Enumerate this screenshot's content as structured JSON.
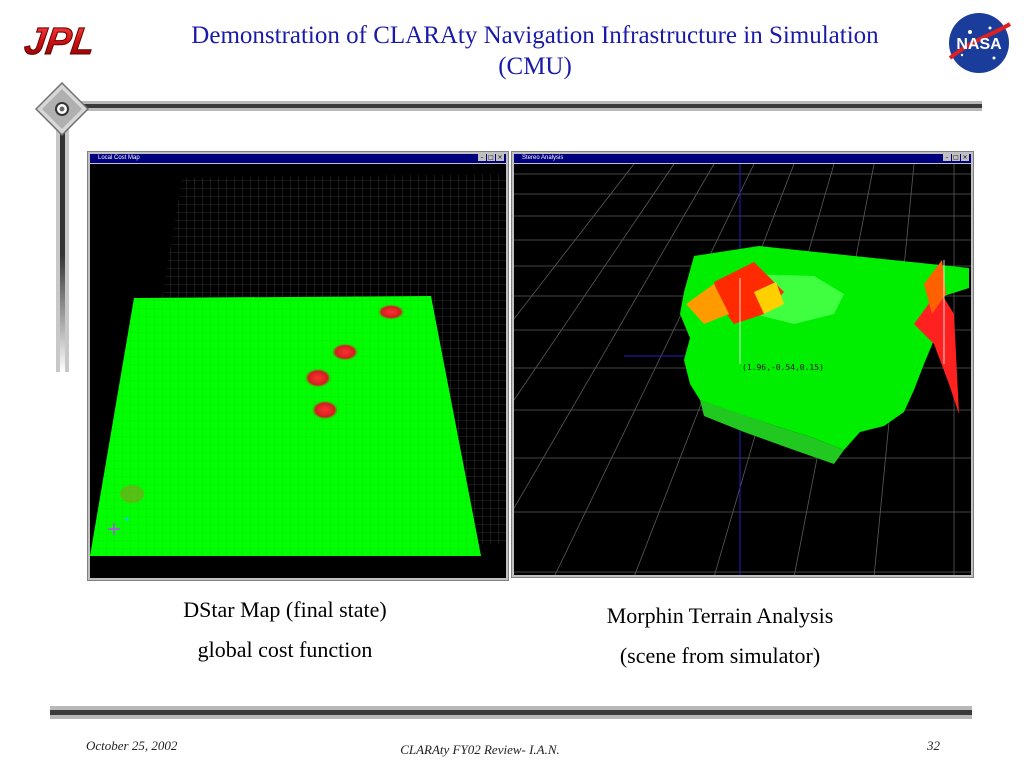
{
  "header": {
    "title_line1": "Demonstration of CLARAty Navigation Infrastructure in Simulation",
    "title_line2": "(CMU)",
    "left_logo_text": "JPL",
    "right_logo_text": "NASA"
  },
  "left_window": {
    "title": "Local Cost Map",
    "caption_line1": "DStar Map (final state)",
    "caption_line2": "global cost function"
  },
  "right_window": {
    "title": "Stereo Analysis",
    "coordinate_readout": "(1.96,-0.54,0.15)",
    "caption_line1": "Morphin Terrain Analysis",
    "caption_line2": "(scene from simulator)"
  },
  "window_buttons": [
    "–",
    "□",
    "×"
  ],
  "footer": {
    "date": "October 25, 2002",
    "center": "CLARAty FY02 Review- I.A.N.",
    "page": "32"
  },
  "colors": {
    "title": "#1a1aa8",
    "jpl_red": "#d01010",
    "nasa_blue": "#1a3d9c",
    "terrain_green": "#00ff00",
    "obstacle_red": "#e02020"
  }
}
